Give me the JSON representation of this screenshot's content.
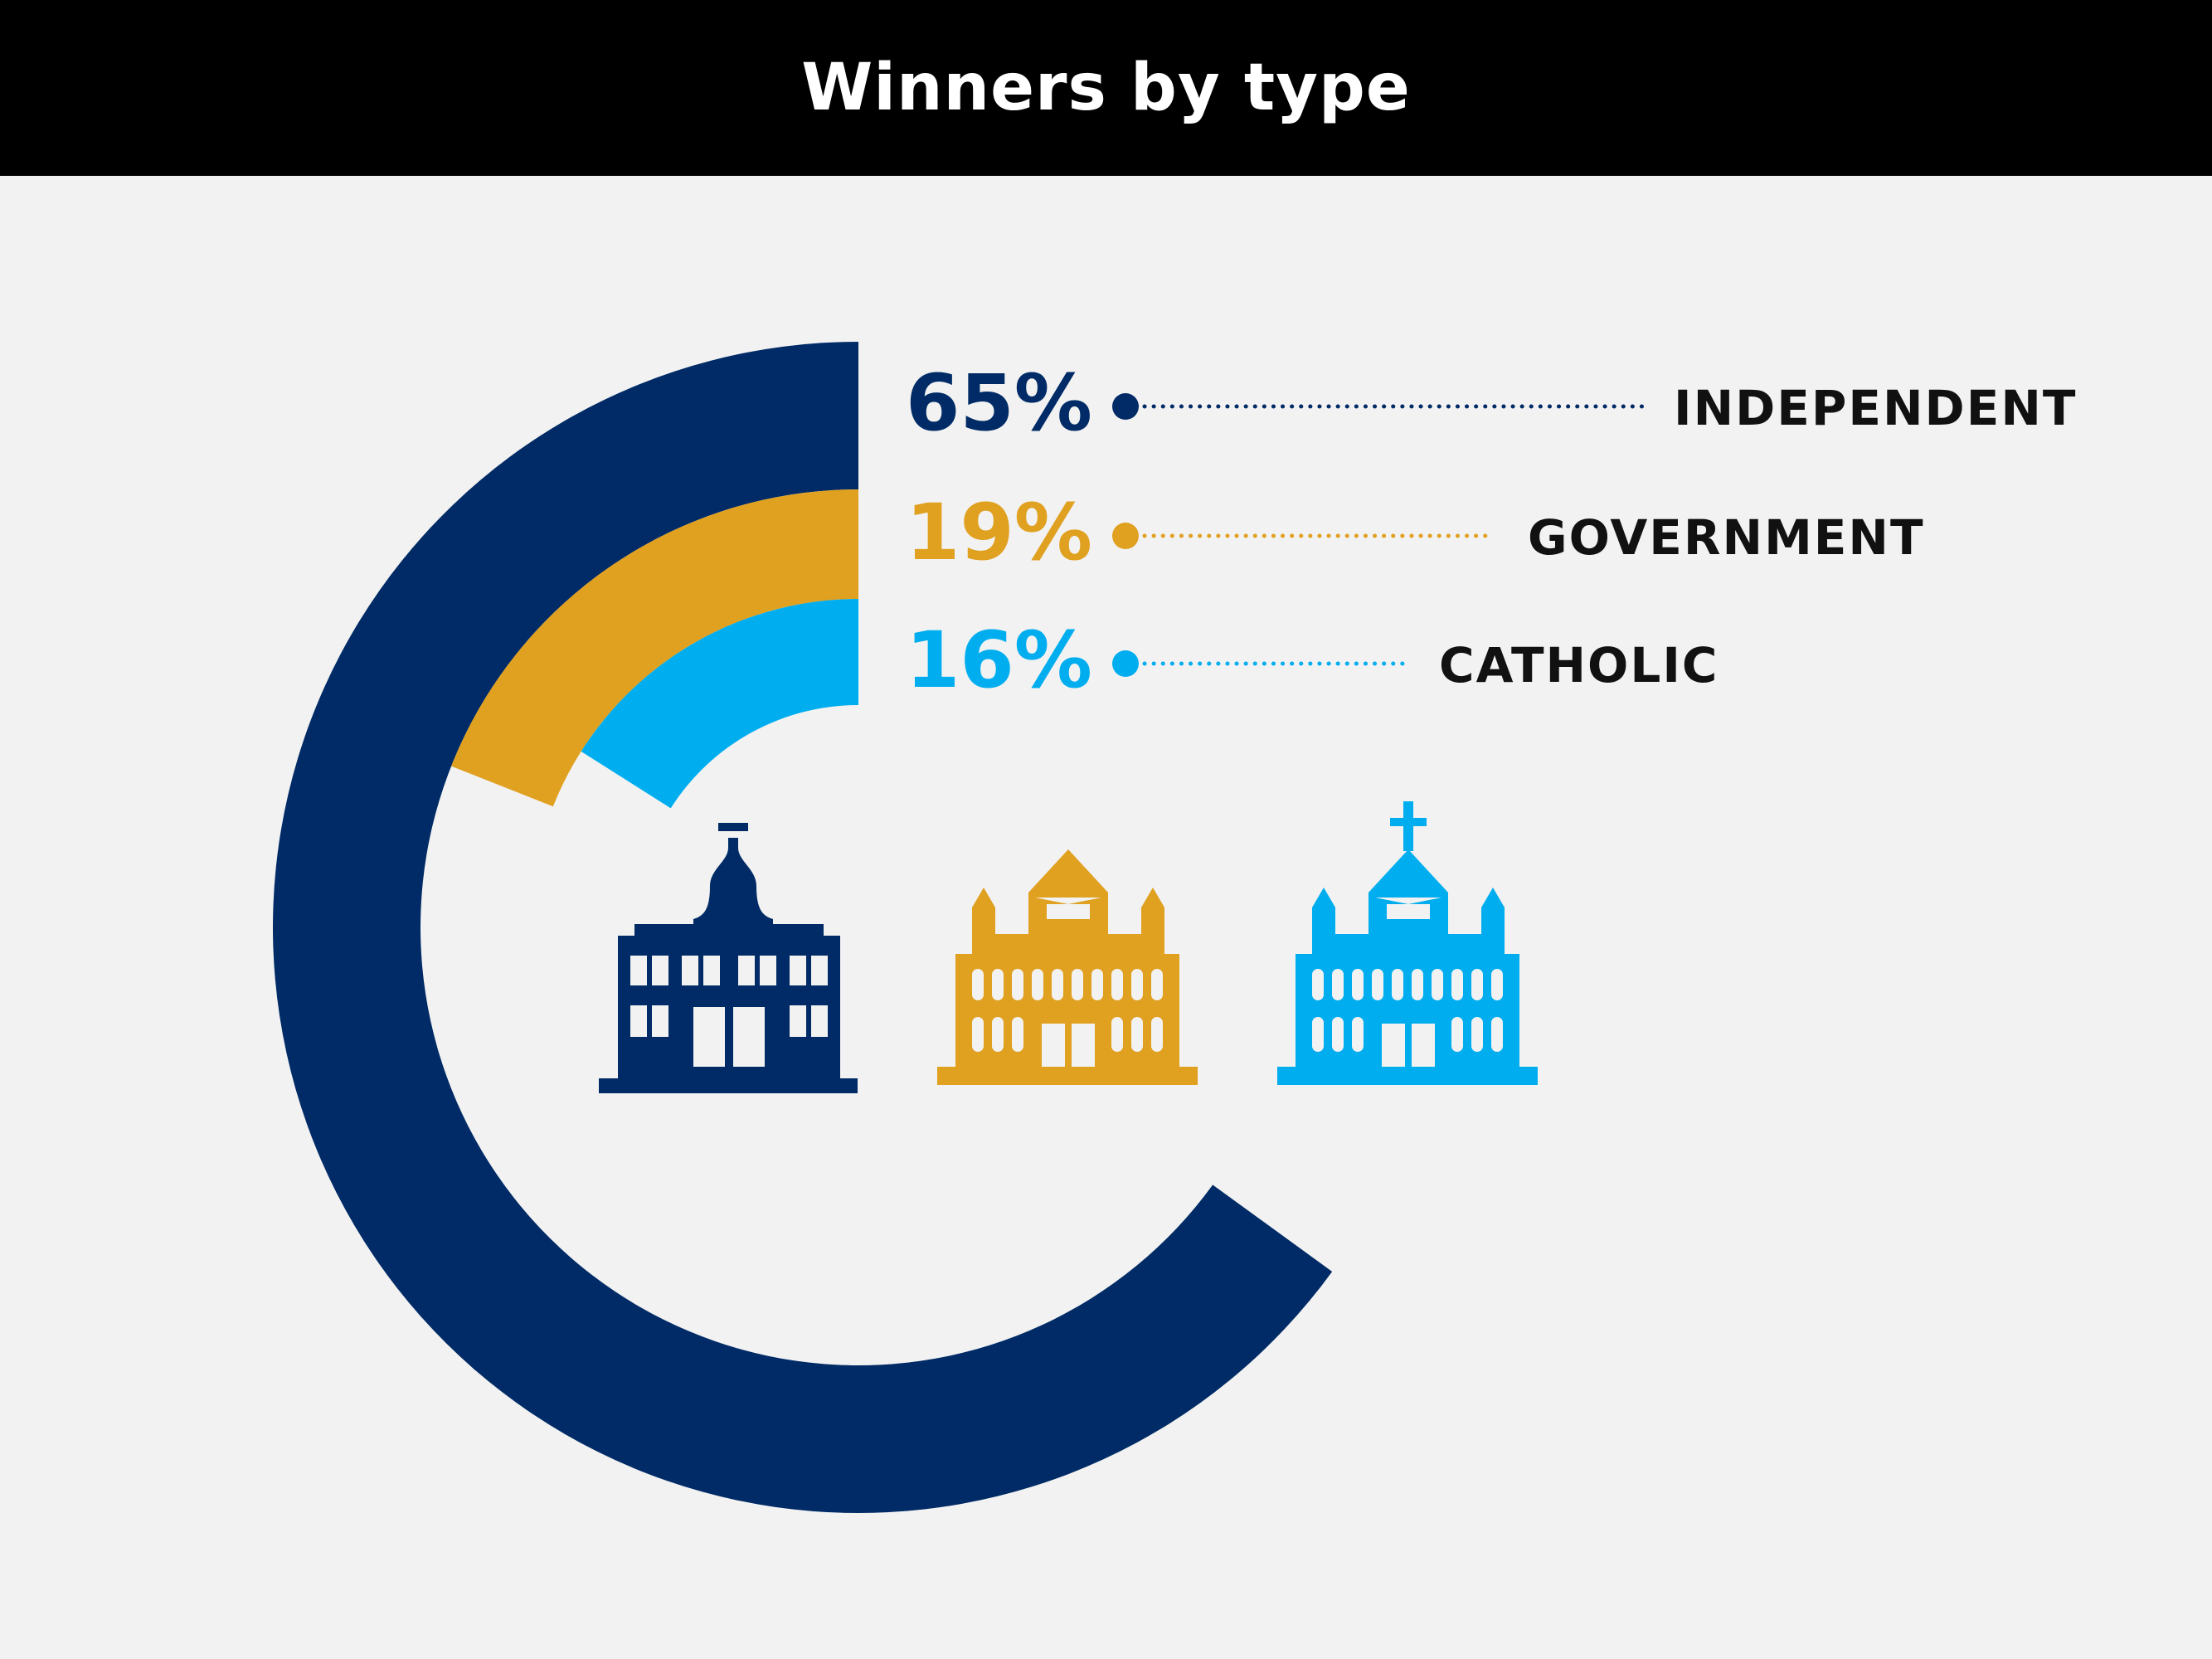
{
  "title": "Winners by type",
  "chart_data": {
    "type": "pie",
    "style": "concentric radial bars (partial rings)",
    "categories": [
      "INDEPENDENT",
      "GOVERNMENT",
      "CATHOLIC"
    ],
    "values": [
      65,
      19,
      16
    ],
    "value_labels": [
      "65%",
      "19%",
      "16%"
    ],
    "unit": "%",
    "colors": [
      "#002b66",
      "#e0a020",
      "#00aeef"
    ],
    "legend_placement": "right of chart with dotted leader lines",
    "icons": [
      "school-bell-building-icon",
      "school-graduation-cap-building-icon",
      "school-church-cross-building-icon"
    ]
  }
}
